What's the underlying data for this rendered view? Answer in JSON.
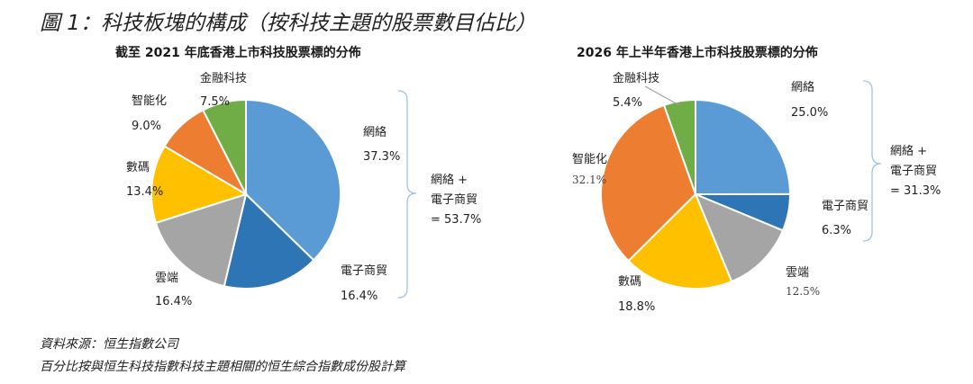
{
  "figure_title": "圖 1：科技板塊的構成（按科技主題的股票數目佔比）",
  "footer": {
    "source": "資料來源：恒生指數公司",
    "note": "百分比按與恒生科技指數科技主題相關的恒生綜合指數成份股計算"
  },
  "colors": {
    "網絡": "#5b9bd5",
    "電子商貿": "#2e75b6",
    "雲端": "#a5a5a5",
    "數碼": "#ffc000",
    "智能化": "#ed7d31",
    "金融科技": "#70ad47"
  },
  "chart_data": [
    {
      "type": "pie",
      "title": "截至 2021 年底香港上市科技股票標的分佈",
      "slices": [
        {
          "name": "網絡",
          "value": 37.3,
          "label": "37.3%"
        },
        {
          "name": "電子商貿",
          "value": 16.4,
          "label": "16.4%"
        },
        {
          "name": "雲端",
          "value": 16.4,
          "label": "16.4%"
        },
        {
          "name": "數碼",
          "value": 13.4,
          "label": "13.4%"
        },
        {
          "name": "智能化",
          "value": 9.0,
          "label": "9.0%"
        },
        {
          "name": "金融科技",
          "value": 7.5,
          "label": "7.5%"
        }
      ],
      "bracket_note": [
        "網絡 +",
        "電子商貿",
        "= 53.7%"
      ]
    },
    {
      "type": "pie",
      "title": "2026 年上半年香港上市科技股票標的分佈",
      "slices": [
        {
          "name": "網絡",
          "value": 25.0,
          "label": "25.0%"
        },
        {
          "name": "電子商貿",
          "value": 6.3,
          "label": "6.3%"
        },
        {
          "name": "雲端",
          "value": 12.5,
          "label": "12.5%"
        },
        {
          "name": "數碼",
          "value": 18.8,
          "label": "18.8%"
        },
        {
          "name": "智能化",
          "value": 32.1,
          "label": "32.1%"
        },
        {
          "name": "金融科技",
          "value": 5.4,
          "label": "5.4%"
        }
      ],
      "bracket_note": [
        "網絡 +",
        "電子商貿",
        "= 31.3%"
      ]
    }
  ]
}
